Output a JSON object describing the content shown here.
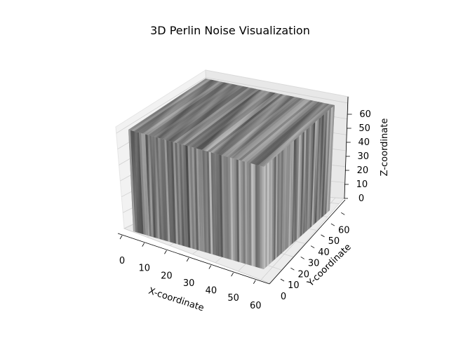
{
  "chart_data": {
    "type": "voxel-3d",
    "title": "3D Perlin Noise Visualization",
    "xlabel": "X-coordinate",
    "ylabel": "Y-coordinate",
    "zlabel": "Z-coordinate",
    "x_ticks": [
      "0",
      "10",
      "20",
      "30",
      "40",
      "50",
      "60"
    ],
    "y_ticks": [
      "0",
      "10",
      "20",
      "30",
      "40",
      "50",
      "60"
    ],
    "z_ticks": [
      "0",
      "10",
      "20",
      "30",
      "40",
      "50",
      "60"
    ],
    "xlim": [
      0,
      64
    ],
    "ylim": [
      0,
      64
    ],
    "zlim": [
      0,
      64
    ],
    "colormap": "gray",
    "grid": true
  }
}
